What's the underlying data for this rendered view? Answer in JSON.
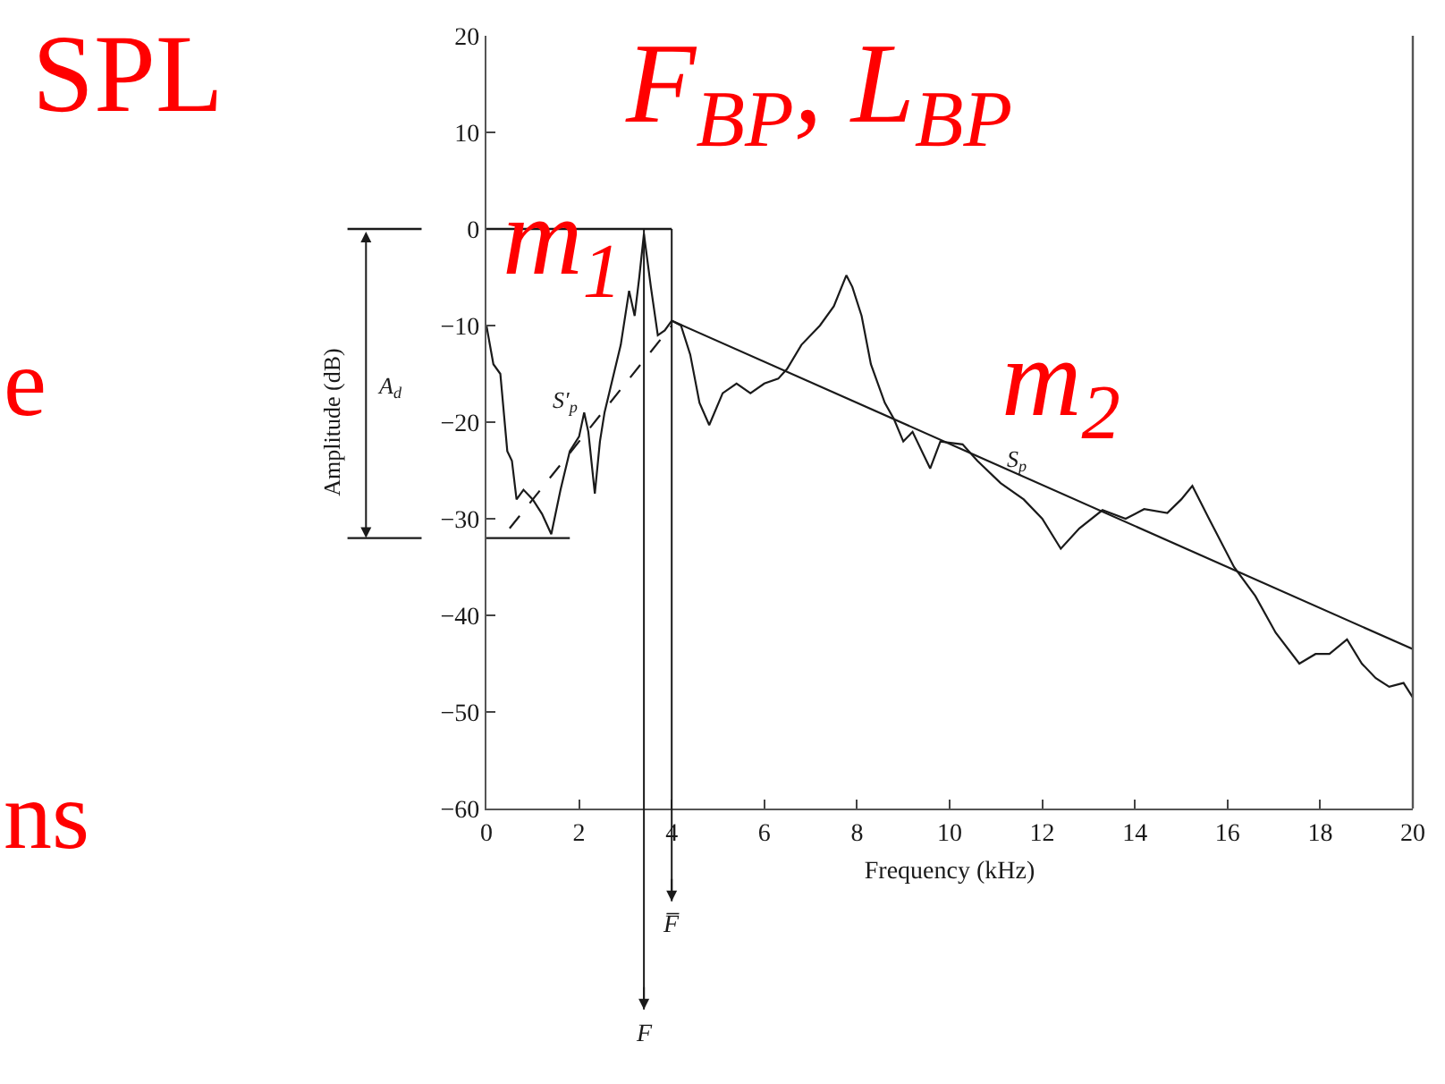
{
  "chart_data": {
    "type": "line",
    "xlabel": "Frequency (kHz)",
    "ylabel": "Amplitude (dB)",
    "xlim": [
      0,
      20
    ],
    "xticks": [
      0,
      2,
      4,
      6,
      8,
      10,
      12,
      14,
      16,
      18,
      20
    ],
    "ylim": [
      -60,
      20
    ],
    "yticks": [
      -60,
      -50,
      -40,
      -30,
      -20,
      -10,
      0,
      10,
      20
    ],
    "grid": false,
    "legend": false,
    "marker": "none",
    "series": [
      {
        "color": "#1a1a1a",
        "x": [
          0,
          0.15,
          0.3,
          0.45,
          0.55,
          0.65,
          0.8,
          1.0,
          1.2,
          1.4,
          1.6,
          1.8,
          2.0,
          2.11,
          2.2,
          2.34,
          2.45,
          2.55,
          2.7,
          2.9,
          3.08,
          3.2,
          3.3,
          3.4,
          3.55,
          3.7,
          3.85,
          4.0,
          4.2,
          4.4,
          4.6,
          4.81,
          5.1,
          5.4,
          5.7,
          6.0,
          6.3,
          6.49,
          6.8,
          7.2,
          7.5,
          7.77,
          7.9,
          8.1,
          8.3,
          8.6,
          8.8,
          9.0,
          9.2,
          9.58,
          9.8,
          10.28,
          10.6,
          11.1,
          11.6,
          12.0,
          12.4,
          12.8,
          13.3,
          13.8,
          14.2,
          14.7,
          15.0,
          15.24,
          15.6,
          16.14,
          16.6,
          17.04,
          17.55,
          17.9,
          18.2,
          18.58,
          18.9,
          19.2,
          19.49,
          19.8,
          20
        ],
        "values": [
          -10,
          -14,
          -15,
          -23,
          -24,
          -28,
          -27,
          -28,
          -29.5,
          -31.6,
          -27,
          -23,
          -21.5,
          -19,
          -21,
          -27.4,
          -22,
          -19,
          -16,
          -12,
          -6.4,
          -9,
          -5,
          -0.5,
          -6,
          -11,
          -10.5,
          -9.5,
          -10,
          -13,
          -18,
          -20.3,
          -17,
          -16,
          -17,
          -16,
          -15.5,
          -14.5,
          -12,
          -10,
          -8,
          -4.8,
          -6,
          -9,
          -14,
          -18,
          -19.7,
          -22,
          -21,
          -24.8,
          -22,
          -22.3,
          -24,
          -26.3,
          -28,
          -30,
          -33.1,
          -31,
          -29.1,
          -30,
          -29,
          -29.4,
          -28,
          -26.6,
          -30,
          -35,
          -38,
          -41.8,
          -45,
          -44,
          -44,
          -42.5,
          -45,
          -46.5,
          -47.4,
          -47,
          -48.5
        ]
      },
      {
        "name": "S′$_{p}$",
        "type": "line",
        "line_style": "dashed",
        "color": "#1a1a1a",
        "x": [
          0.5,
          4
        ],
        "values": [
          -31,
          -10
        ]
      },
      {
        "name": "S$_{p}$",
        "type": "line",
        "line_style": "solid",
        "color": "#1a1a1a",
        "x": [
          4,
          20
        ],
        "values": [
          -9.5,
          -43.5
        ]
      }
    ],
    "ref_lines": [
      {
        "axis": "x",
        "value": 3.4,
        "label": "F"
      },
      {
        "axis": "x",
        "value": 4,
        "label": "F̅"
      },
      {
        "axis": "y",
        "value": 0
      },
      {
        "axis": "y",
        "value": -32
      }
    ],
    "annotations": [
      "SPL",
      "F$_{BP}$, L$_{BP}$",
      "m$_{1}$",
      "m$_{2}$",
      "e",
      "ns",
      "A$_{d}$"
    ]
  }
}
